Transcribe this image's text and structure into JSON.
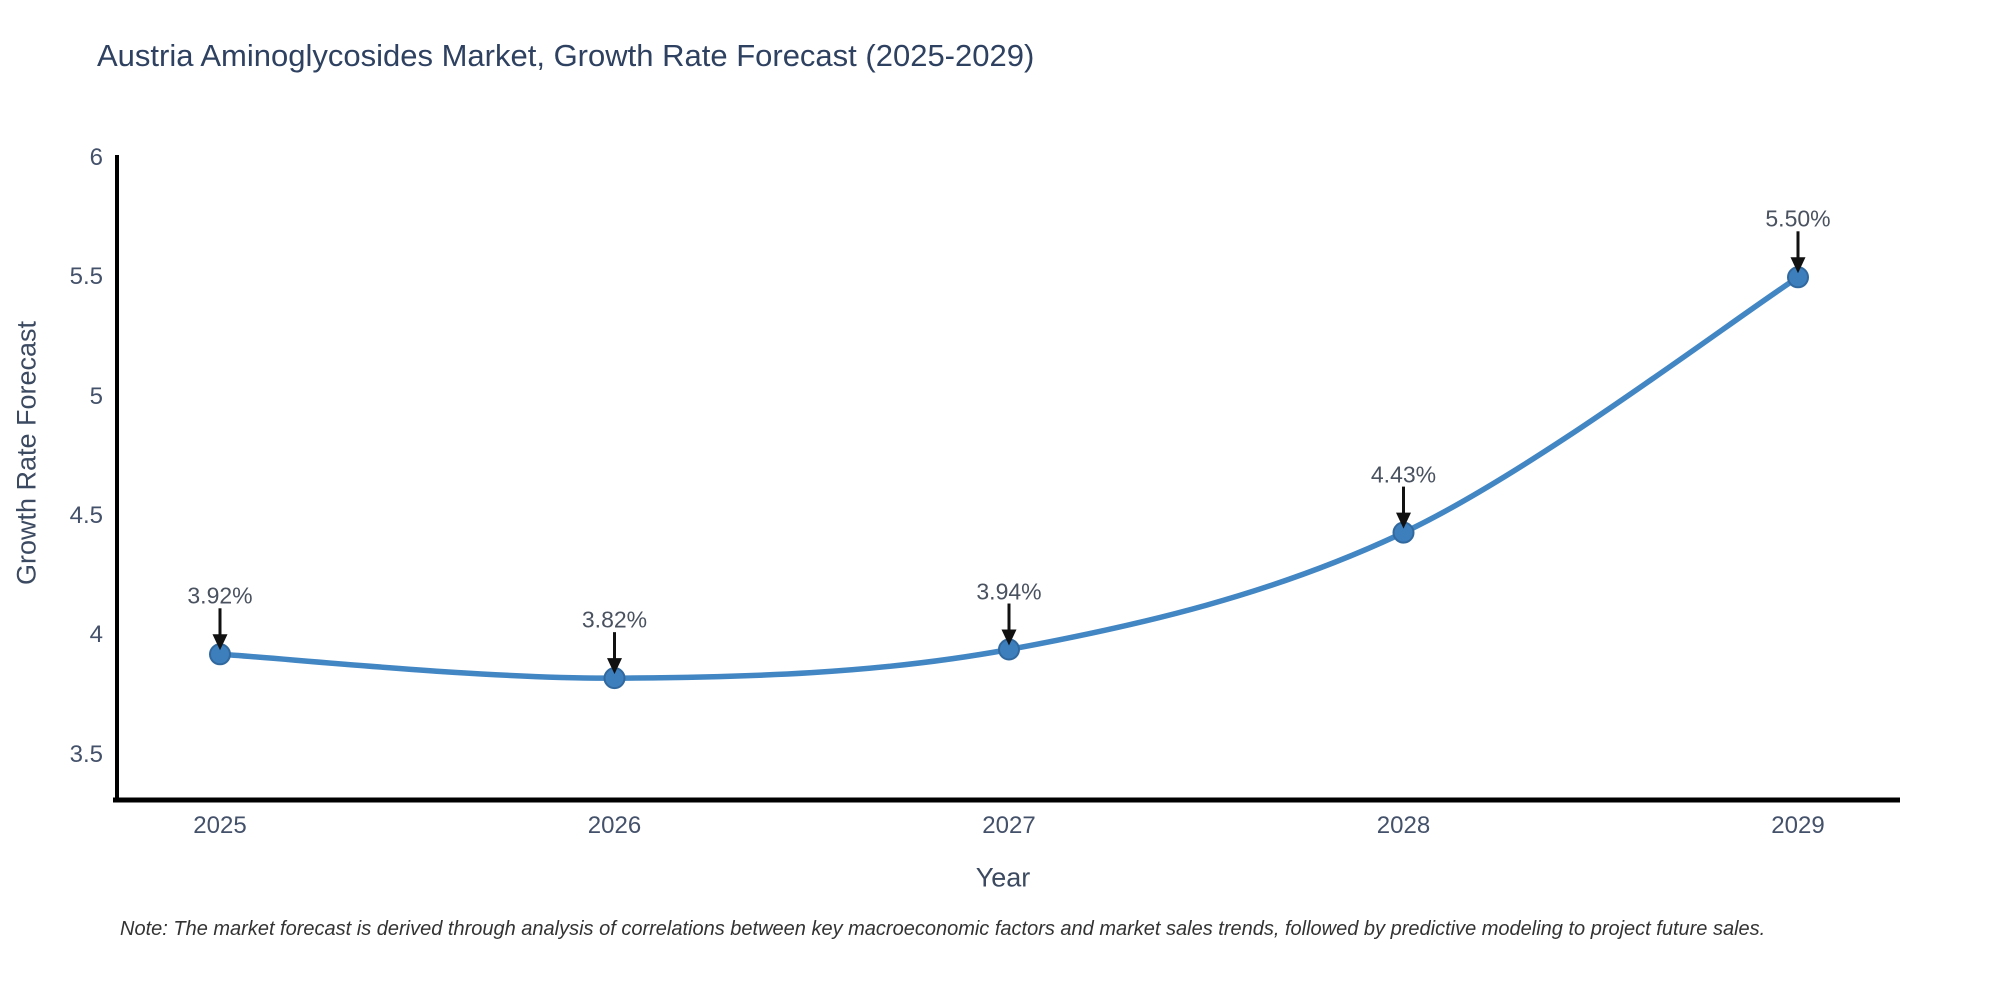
{
  "title": "Austria Aminoglycosides Market, Growth Rate Forecast (2025-2029)",
  "note": "Note: The market forecast is derived through analysis of correlations between key macroeconomic factors and market sales trends, followed by predictive modeling to project future sales.",
  "chart_data": {
    "type": "line",
    "title": "Austria Aminoglycosides Market, Growth Rate Forecast (2025-2029)",
    "xlabel": "Year",
    "ylabel": "Growth Rate Forecast",
    "categories": [
      "2025",
      "2026",
      "2027",
      "2028",
      "2029"
    ],
    "values": [
      3.92,
      3.82,
      3.94,
      4.43,
      5.5
    ],
    "point_labels": [
      "3.92%",
      "3.82%",
      "3.94%",
      "4.43%",
      "5.50%"
    ],
    "ytick_values": [
      6,
      5.5,
      5,
      4.5,
      4,
      3.5
    ],
    "ytick_labels": [
      "6",
      "5.5",
      "5",
      "4.5",
      "4",
      "3.5"
    ],
    "ylim": [
      3.31,
      6.0
    ],
    "grid": false,
    "legend": "none",
    "line_shape": "spline",
    "annotation_arrows": true,
    "colors": {
      "line": "#4286c4",
      "marker_fill": "#3d7ebd",
      "marker_edge": "#31699f",
      "axis": "#000000",
      "arrow": "#111111",
      "title_text": "#2e4160",
      "tick_text": "#44516a",
      "annotation_text": "#4a5260",
      "note_text": "#333333",
      "background": "#ffffff"
    }
  }
}
